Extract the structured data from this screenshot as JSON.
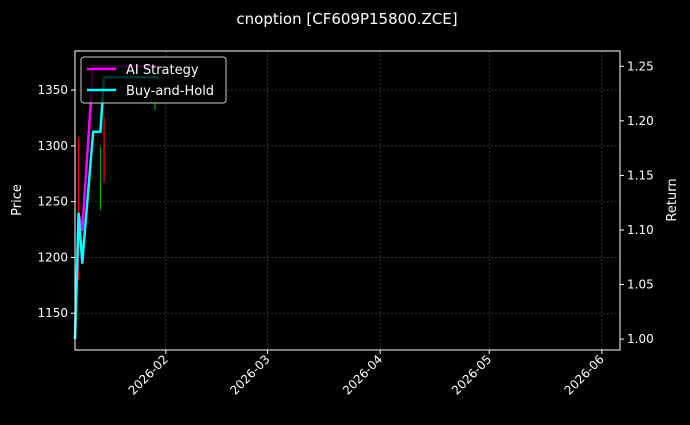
{
  "chart_data": {
    "type": "line",
    "title": "cnoption [CF609P15800.ZCE]",
    "ylabel": "Price",
    "y2label": "Return",
    "xlim": [
      "2026-01-07",
      "2026-06-06"
    ],
    "ylim": [
      1117,
      1385
    ],
    "y2lim": [
      0.99,
      1.264
    ],
    "grid": true,
    "legend_placement": "top-left",
    "x_ticks": [
      "2026-02",
      "2026-03",
      "2026-04",
      "2026-05",
      "2026-06"
    ],
    "y_ticks": [
      1150,
      1200,
      1250,
      1300,
      1350
    ],
    "y2_ticks": [
      "1.00",
      "1.05",
      "1.10",
      "1.15",
      "1.20",
      "1.25"
    ],
    "candles": [
      {
        "date": "2026-01-08",
        "high": 1307,
        "low": 1180,
        "color": "#ff0000"
      },
      {
        "date": "2026-01-14",
        "high": 1299,
        "low": 1242,
        "color": "#00aa00"
      },
      {
        "date": "2026-01-15",
        "high": 1326,
        "low": 1267,
        "color": "#ff0000"
      },
      {
        "date": "2026-01-29",
        "high": 1341,
        "low": 1332,
        "color": "#00aa00"
      }
    ],
    "series": [
      {
        "name": "AI Strategy",
        "color": "#ff00ff",
        "x": [
          "2026-01-07",
          "2026-01-08",
          "2026-01-09",
          "2026-01-12",
          "2026-01-30"
        ],
        "values": [
          1.0,
          1.115,
          1.1,
          1.25,
          1.25
        ]
      },
      {
        "name": "Buy-and-Hold",
        "color": "#00ffff",
        "x": [
          "2026-01-07",
          "2026-01-08",
          "2026-01-09",
          "2026-01-12",
          "2026-01-14",
          "2026-01-15",
          "2026-01-30"
        ],
        "values": [
          1.0,
          1.115,
          1.07,
          1.19,
          1.19,
          1.24,
          1.24
        ]
      }
    ]
  }
}
